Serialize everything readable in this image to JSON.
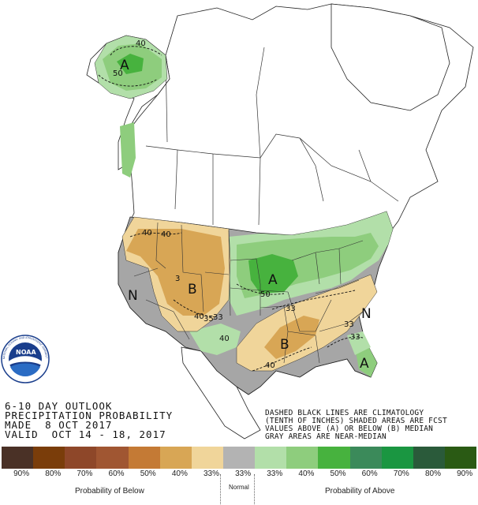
{
  "title_block": {
    "line1": "6-10 DAY OUTLOOK",
    "line2": "PRECIPITATION PROBABILITY",
    "line3": "MADE  8 OCT 2017",
    "line4": "VALID  OCT 14 - 18, 2017"
  },
  "notes": {
    "line1": "DASHED BLACK LINES ARE CLIMATOLOGY",
    "line2": "(TENTH OF INCHES) SHADED AREAS ARE FCST",
    "line3": "VALUES ABOVE (A) OR BELOW (B) MEDIAN",
    "line4": "GRAY AREAS ARE NEAR-MEDIAN"
  },
  "map_labels": {
    "alaska_a": "A",
    "alaska_c40": "40",
    "alaska_c50": "50",
    "west_b": "B",
    "west_n": "N",
    "midwest_a": "A",
    "southeast_b": "B",
    "east_n": "N",
    "florida_a": "A",
    "w_c40a": "40",
    "w_c40b": "40",
    "w_c3": "3",
    "w_c40c": "40",
    "w_c35": "35",
    "w_c33": "33",
    "mid_c50": "50",
    "mid_c40": "40",
    "se_c33a": "33",
    "se_c33b": "33",
    "se_c40": "40",
    "fl_c33": "33"
  },
  "legend": {
    "colors": [
      "#4a3126",
      "#7a3d0a",
      "#8e4729",
      "#a05632",
      "#c47a35",
      "#d8a655",
      "#f0d59a",
      "#b3b3b3",
      "#b2dfa9",
      "#8ecd7d",
      "#47b23e",
      "#3b8a5a",
      "#1a9641",
      "#2a5a3a",
      "#2a5a14"
    ],
    "percents": [
      "90%",
      "80%",
      "70%",
      "60%",
      "50%",
      "40%",
      "33%",
      "33%",
      "33%",
      "40%",
      "50%",
      "60%",
      "70%",
      "80%",
      "90%"
    ],
    "below_label": "Probability of Below",
    "normal_label": "Normal",
    "above_label": "Probability of Above"
  },
  "colors": {
    "gray_near_median": "#a6a6a6",
    "above_light": "#b2dfa9",
    "above_mid": "#8ecd7d",
    "above_dark": "#47b23e",
    "below_light": "#f0d59a",
    "below_mid": "#d8a655",
    "below_dark": "#c47a35"
  }
}
